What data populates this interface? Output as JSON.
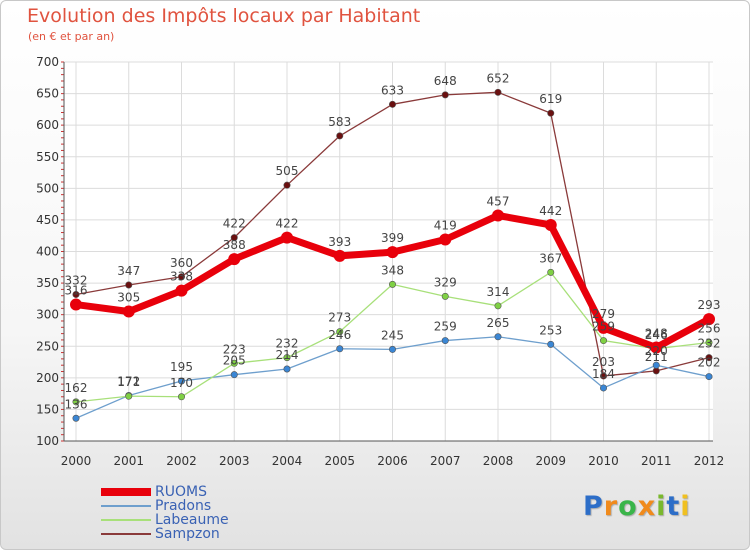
{
  "chart_data": {
    "type": "line",
    "title": "Evolution des Impôts locaux par Habitant",
    "subtitle": "(en € et par an)",
    "xlabel": "",
    "ylabel": "",
    "x": [
      "2000",
      "2001",
      "2002",
      "2003",
      "2004",
      "2005",
      "2006",
      "2007",
      "2008",
      "2009",
      "2010",
      "2011",
      "2012"
    ],
    "ylim": [
      100,
      700
    ],
    "yticks": [
      100,
      150,
      200,
      250,
      300,
      350,
      400,
      450,
      500,
      550,
      600,
      650,
      700
    ],
    "legend_position": "bottom-left",
    "series": [
      {
        "name": "RUOMS",
        "color": "#e8000b",
        "values": [
          316,
          305,
          338,
          388,
          422,
          393,
          399,
          419,
          457,
          442,
          279,
          248,
          293
        ]
      },
      {
        "name": "Pradons",
        "color": "#6e9fcd",
        "values": [
          136,
          172,
          195,
          205,
          214,
          246,
          245,
          259,
          265,
          253,
          184,
          220,
          202
        ]
      },
      {
        "name": "Labeaume",
        "color": "#a8e07a",
        "values": [
          162,
          171,
          170,
          223,
          232,
          273,
          348,
          329,
          314,
          367,
          259,
          246,
          256
        ]
      },
      {
        "name": "Sampzon",
        "color": "#8a3a3a",
        "values": [
          332,
          347,
          360,
          422,
          505,
          583,
          633,
          648,
          652,
          619,
          203,
          211,
          232
        ]
      }
    ]
  },
  "logo": {
    "letters": [
      "P",
      "r",
      "o",
      "x",
      "i",
      "t",
      "i"
    ],
    "colors": [
      "#2d6ec8",
      "#f08a1c",
      "#3ab54a",
      "#f08a1c",
      "#7ab82e",
      "#2d6ec8",
      "#f0c020"
    ]
  }
}
